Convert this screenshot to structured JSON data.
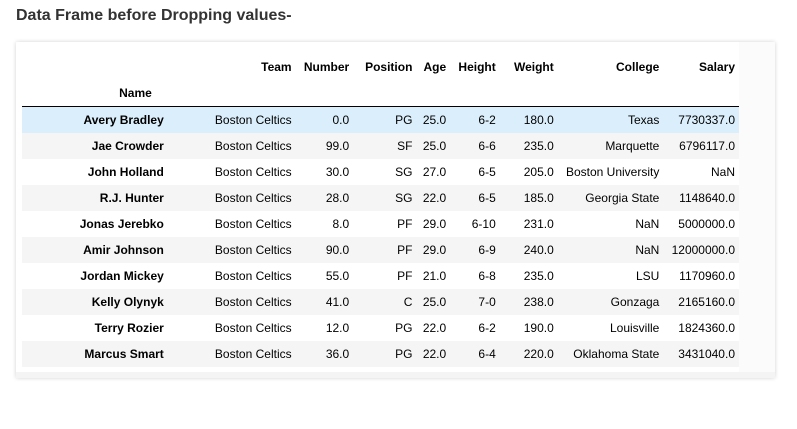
{
  "heading": "Data Frame before Dropping values-",
  "table": {
    "index_name": "Name",
    "columns": [
      "Team",
      "Number",
      "Position",
      "Age",
      "Height",
      "Weight",
      "College",
      "Salary"
    ],
    "rows": [
      {
        "name": "Avery Bradley",
        "cells": [
          "Boston Celtics",
          "0.0",
          "PG",
          "25.0",
          "6-2",
          "180.0",
          "Texas",
          "7730337.0"
        ]
      },
      {
        "name": "Jae Crowder",
        "cells": [
          "Boston Celtics",
          "99.0",
          "SF",
          "25.0",
          "6-6",
          "235.0",
          "Marquette",
          "6796117.0"
        ]
      },
      {
        "name": "John Holland",
        "cells": [
          "Boston Celtics",
          "30.0",
          "SG",
          "27.0",
          "6-5",
          "205.0",
          "Boston University",
          "NaN"
        ]
      },
      {
        "name": "R.J. Hunter",
        "cells": [
          "Boston Celtics",
          "28.0",
          "SG",
          "22.0",
          "6-5",
          "185.0",
          "Georgia State",
          "1148640.0"
        ]
      },
      {
        "name": "Jonas Jerebko",
        "cells": [
          "Boston Celtics",
          "8.0",
          "PF",
          "29.0",
          "6-10",
          "231.0",
          "NaN",
          "5000000.0"
        ]
      },
      {
        "name": "Amir Johnson",
        "cells": [
          "Boston Celtics",
          "90.0",
          "PF",
          "29.0",
          "6-9",
          "240.0",
          "NaN",
          "12000000.0"
        ]
      },
      {
        "name": "Jordan Mickey",
        "cells": [
          "Boston Celtics",
          "55.0",
          "PF",
          "21.0",
          "6-8",
          "235.0",
          "LSU",
          "1170960.0"
        ]
      },
      {
        "name": "Kelly Olynyk",
        "cells": [
          "Boston Celtics",
          "41.0",
          "C",
          "25.0",
          "7-0",
          "238.0",
          "Gonzaga",
          "2165160.0"
        ]
      },
      {
        "name": "Terry Rozier",
        "cells": [
          "Boston Celtics",
          "12.0",
          "PG",
          "22.0",
          "6-2",
          "190.0",
          "Louisville",
          "1824360.0"
        ]
      },
      {
        "name": "Marcus Smart",
        "cells": [
          "Boston Celtics",
          "36.0",
          "PG",
          "22.0",
          "6-4",
          "220.0",
          "Oklahoma State",
          "3431040.0"
        ]
      }
    ]
  },
  "colors": {
    "highlight_row": "#dbeefb",
    "stripe_row": "#f5f5f5"
  }
}
